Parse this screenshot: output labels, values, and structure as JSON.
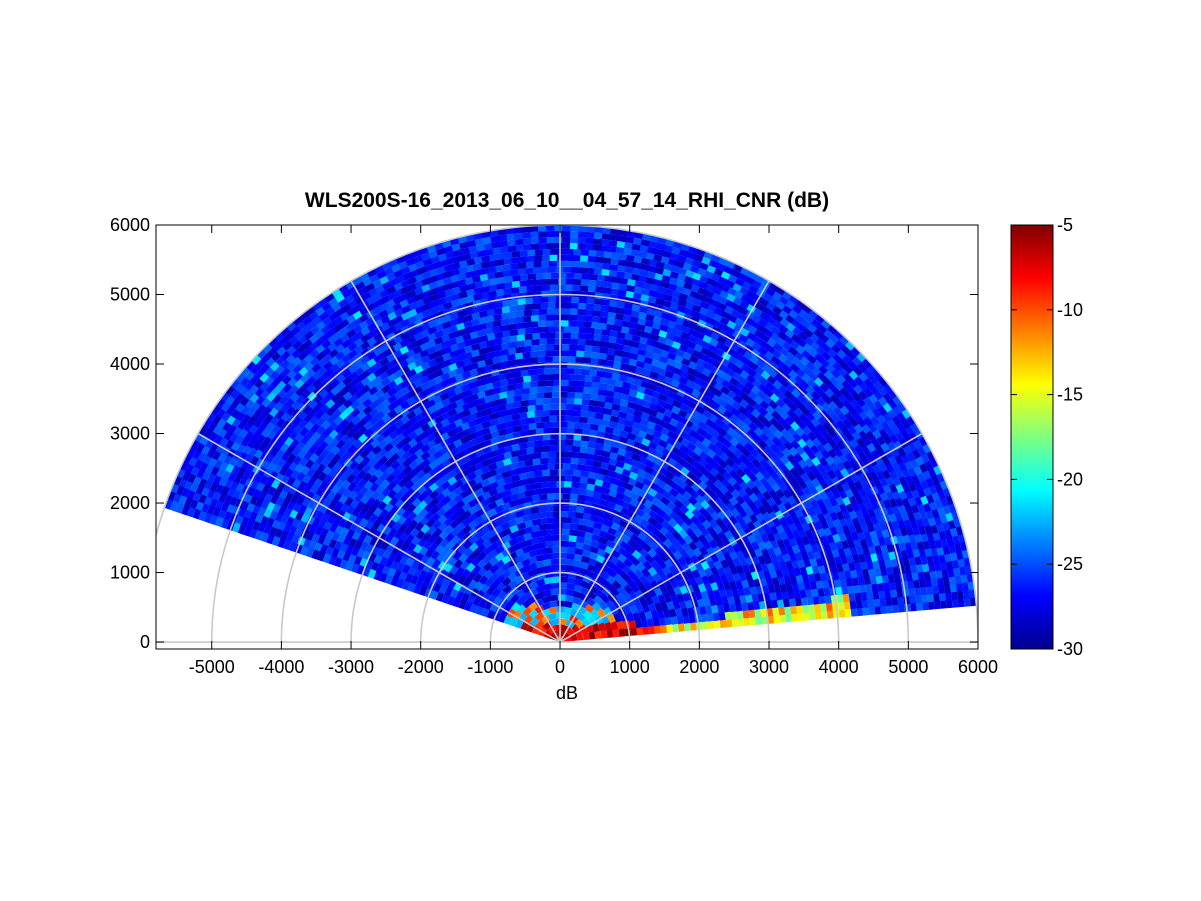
{
  "chart_data": {
    "type": "heatmap",
    "subtype": "polar RHI scan (range-height indicator)",
    "title": "WLS200S-16_2013_06_10__04_57_14_RHI_CNR (dB)",
    "xlabel": "dB",
    "ylabel": "",
    "xlim": [
      -5800,
      6000
    ],
    "ylim": [
      -100,
      6000
    ],
    "x_ticks": [
      -5000,
      -4000,
      -3000,
      -2000,
      -1000,
      0,
      1000,
      2000,
      3000,
      4000,
      5000,
      6000
    ],
    "y_ticks": [
      0,
      1000,
      2000,
      3000,
      4000,
      5000,
      6000
    ],
    "x_tick_labels": [
      "-5000",
      "-4000",
      "-3000",
      "-2000",
      "-1000",
      "0",
      "1000",
      "2000",
      "3000",
      "4000",
      "5000",
      "6000"
    ],
    "y_tick_labels": [
      "0",
      "1000",
      "2000",
      "3000",
      "4000",
      "5000",
      "6000"
    ],
    "scan": {
      "elevation_start_deg": 5,
      "elevation_end_deg": 161,
      "max_range": 6000,
      "range_ring_step": 1000,
      "radial_grid_step_deg": 30
    },
    "colorbar": {
      "colormap": "jet",
      "clim": [
        -30,
        -5
      ],
      "ticks": [
        -30,
        -25,
        -20,
        -15,
        -10,
        -5
      ],
      "tick_labels": [
        "-30",
        "-25",
        "-20",
        "-15",
        "-10",
        "-5"
      ]
    },
    "field_summary": {
      "background_cnr_db": -26.5,
      "near_ground_max_cnr_db": -5,
      "near_ground_max_range": 1500,
      "low_elevation_plume_cnr_db": [
        -10,
        -18
      ],
      "low_elevation_plume_range": [
        1000,
        4200
      ]
    },
    "grid": true
  }
}
